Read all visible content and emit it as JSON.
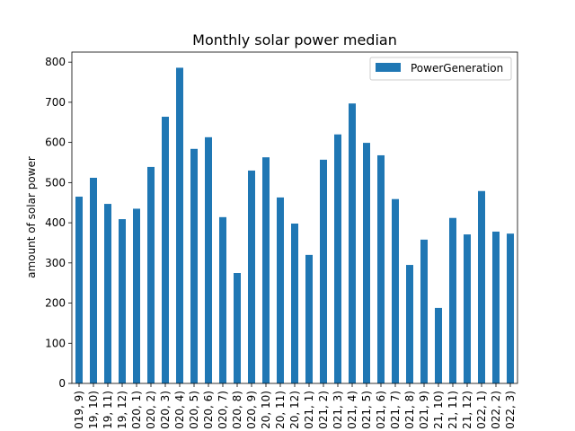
{
  "chart_data": {
    "type": "bar",
    "title": "Monthly solar power median",
    "xlabel": "",
    "ylabel": "amount of solar power",
    "ylim": [
      0,
      825
    ],
    "yticks": [
      0,
      100,
      200,
      300,
      400,
      500,
      600,
      700,
      800
    ],
    "grid": false,
    "legend": {
      "position": "top-right"
    },
    "categories": [
      "019, 9)",
      "19, 10)",
      "19, 11)",
      "19, 12)",
      "020, 1)",
      "020, 2)",
      "020, 3)",
      "020, 4)",
      "020, 5)",
      "020, 6)",
      "020, 7)",
      "020, 8)",
      "020, 9)",
      "20, 10)",
      "20, 11)",
      "20, 12)",
      "021, 1)",
      "021, 2)",
      "021, 3)",
      "021, 4)",
      "021, 5)",
      "021, 6)",
      "021, 7)",
      "021, 8)",
      "021, 9)",
      "21, 10)",
      "21, 11)",
      "21, 12)",
      "022, 1)",
      "022, 2)",
      "022, 3)"
    ],
    "series": [
      {
        "name": "PowerGeneration",
        "color": "#1f77b4",
        "values": [
          465,
          512,
          447,
          409,
          435,
          539,
          664,
          786,
          584,
          613,
          414,
          275,
          530,
          563,
          463,
          398,
          320,
          557,
          620,
          697,
          599,
          568,
          459,
          295,
          358,
          188,
          412,
          371,
          479,
          378,
          373
        ]
      }
    ]
  }
}
